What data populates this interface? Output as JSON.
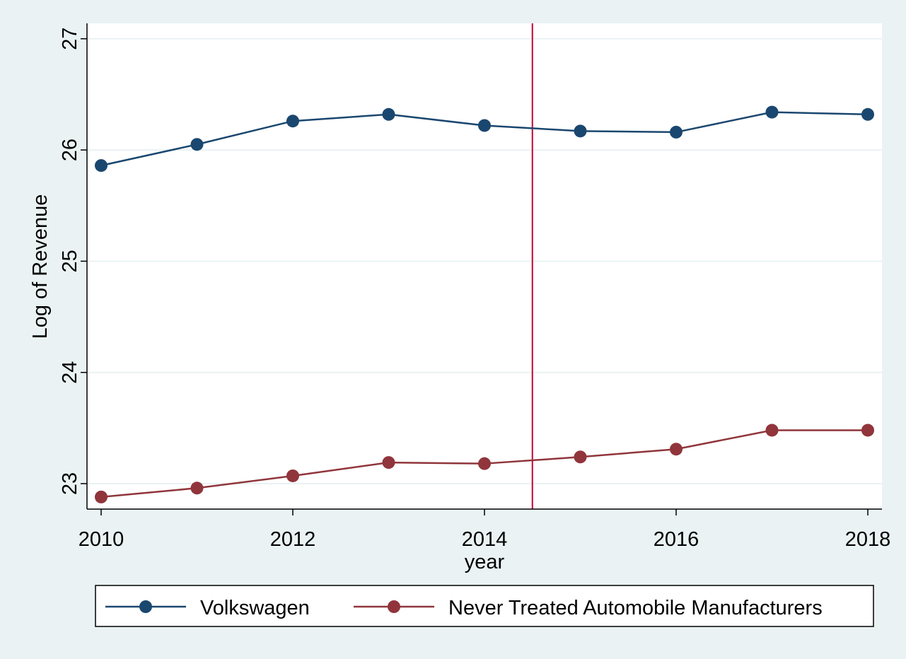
{
  "chart_data": {
    "type": "line",
    "title": "",
    "xlabel": "year",
    "ylabel": "Log of Revenue",
    "x": [
      2010,
      2011,
      2012,
      2013,
      2014,
      2015,
      2016,
      2017,
      2018
    ],
    "xlim": [
      2010,
      2018
    ],
    "ylim": [
      22.8,
      27.0
    ],
    "xticks": [
      "2010",
      "2012",
      "2014",
      "2016",
      "2018"
    ],
    "yticks": [
      "23",
      "24",
      "25",
      "26",
      "27"
    ],
    "grid": "horizontal",
    "reference_line_x": 2014.5,
    "legend_position": "bottom",
    "series": [
      {
        "name": "Volkswagen",
        "color": "#1a476f",
        "values": [
          25.86,
          26.05,
          26.26,
          26.32,
          26.22,
          26.17,
          26.16,
          26.34,
          26.32
        ]
      },
      {
        "name": "Never Treated Automobile Manufacturers",
        "color": "#90353b",
        "values": [
          22.88,
          22.96,
          23.07,
          23.19,
          23.18,
          23.24,
          23.31,
          23.48,
          23.48
        ]
      }
    ],
    "colors": {
      "page_background": "#eaf2f3",
      "plot_background": "#ffffff",
      "gridline": "#eaf2f3",
      "reference_line": "#c10534"
    }
  }
}
